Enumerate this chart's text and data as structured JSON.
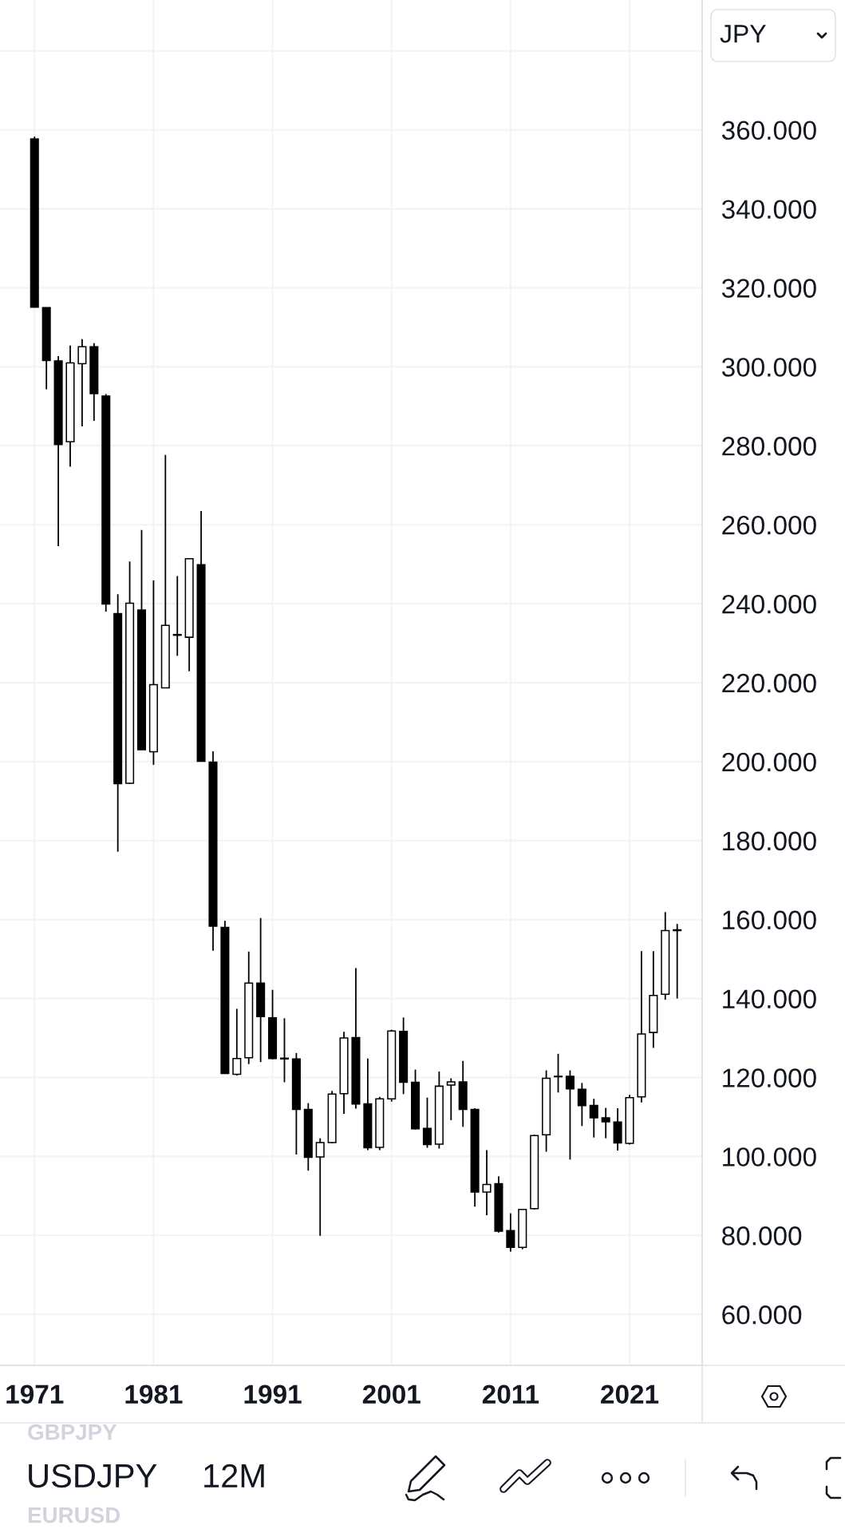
{
  "chart_data": {
    "type": "candlestick",
    "x": [
      1971,
      1972,
      1973,
      1974,
      1975,
      1976,
      1977,
      1978,
      1979,
      1980,
      1981,
      1982,
      1983,
      1984,
      1985,
      1986,
      1987,
      1988,
      1989,
      1990,
      1991,
      1992,
      1993,
      1994,
      1995,
      1996,
      1997,
      1998,
      1999,
      2000,
      2001,
      2002,
      2003,
      2004,
      2005,
      2006,
      2007,
      2008,
      2009,
      2010,
      2011,
      2012,
      2013,
      2014,
      2015,
      2016,
      2017,
      2018,
      2019,
      2020,
      2021,
      2022,
      2023,
      2024,
      2025
    ],
    "ohlc": [
      [
        357.7,
        358.3,
        315.1,
        315.1
      ],
      [
        315.0,
        315.0,
        294.3,
        301.6
      ],
      [
        301.5,
        302.7,
        254.6,
        280.3
      ],
      [
        281.0,
        305.4,
        274.7,
        301.0
      ],
      [
        300.8,
        307.0,
        284.9,
        305.1
      ],
      [
        305.1,
        306.0,
        286.3,
        293.2
      ],
      [
        292.6,
        293.1,
        238.0,
        239.9
      ],
      [
        237.5,
        242.4,
        177.2,
        194.4
      ],
      [
        194.5,
        250.7,
        194.3,
        240.1
      ],
      [
        238.4,
        258.7,
        203.0,
        203.0
      ],
      [
        202.5,
        245.9,
        199.2,
        219.5
      ],
      [
        218.7,
        277.7,
        218.7,
        234.5
      ],
      [
        232.2,
        247.0,
        226.8,
        232.0
      ],
      [
        231.5,
        251.4,
        222.9,
        251.4
      ],
      [
        249.9,
        263.5,
        200.1,
        200.1
      ],
      [
        199.9,
        202.6,
        152.1,
        158.3
      ],
      [
        158.0,
        159.7,
        121.0,
        121.0
      ],
      [
        120.8,
        137.4,
        120.5,
        124.8
      ],
      [
        125.0,
        151.9,
        123.4,
        143.9
      ],
      [
        143.9,
        160.4,
        123.9,
        135.4
      ],
      [
        135.1,
        142.2,
        124.6,
        124.8
      ],
      [
        124.9,
        135.0,
        118.8,
        124.7
      ],
      [
        124.7,
        126.2,
        100.5,
        111.9
      ],
      [
        111.9,
        113.5,
        96.4,
        99.8
      ],
      [
        99.9,
        104.6,
        79.9,
        103.5
      ],
      [
        103.5,
        116.6,
        103.3,
        115.8
      ],
      [
        115.9,
        131.6,
        110.8,
        130.0
      ],
      [
        130.1,
        147.7,
        112.1,
        113.3
      ],
      [
        113.3,
        124.8,
        101.6,
        102.2
      ],
      [
        102.3,
        115.1,
        101.6,
        114.6
      ],
      [
        114.6,
        132.1,
        113.9,
        131.8
      ],
      [
        131.7,
        135.2,
        115.8,
        118.8
      ],
      [
        118.8,
        122.0,
        106.8,
        107.0
      ],
      [
        107.1,
        114.9,
        102.2,
        103.0
      ],
      [
        103.1,
        121.5,
        102.0,
        117.8
      ],
      [
        118.1,
        119.8,
        109.2,
        118.9
      ],
      [
        118.9,
        124.2,
        107.5,
        111.9
      ],
      [
        111.9,
        112.2,
        87.3,
        91.0
      ],
      [
        91.0,
        101.6,
        85.1,
        92.9
      ],
      [
        93.1,
        95.0,
        80.7,
        81.1
      ],
      [
        81.2,
        85.6,
        75.9,
        77.0
      ],
      [
        77.0,
        86.7,
        76.5,
        86.6
      ],
      [
        86.8,
        105.5,
        86.6,
        105.3
      ],
      [
        105.5,
        121.8,
        101.2,
        119.8
      ],
      [
        120.2,
        126.0,
        116.2,
        120.3
      ],
      [
        120.3,
        121.8,
        99.2,
        117.1
      ],
      [
        117.0,
        118.6,
        107.7,
        112.9
      ],
      [
        112.9,
        114.6,
        104.8,
        109.8
      ],
      [
        109.8,
        112.3,
        104.6,
        108.8
      ],
      [
        108.7,
        112.2,
        101.5,
        103.4
      ],
      [
        103.3,
        115.6,
        103.0,
        114.9
      ],
      [
        115.1,
        152.0,
        113.7,
        131.0
      ],
      [
        131.4,
        152.0,
        127.5,
        140.8
      ],
      [
        141.1,
        161.9,
        139.7,
        157.2
      ],
      [
        157.2,
        158.9,
        140.0,
        157.4
      ]
    ],
    "color": "#000000",
    "xlim": [
      1968.1,
      2027.1
    ],
    "ylim": [
      47.1,
      392.9
    ],
    "xticks": [
      1971,
      1981,
      1991,
      2001,
      2011,
      2021
    ],
    "yticks": [
      {
        "value": 60,
        "label": "60.000"
      },
      {
        "value": 80,
        "label": "80.000"
      },
      {
        "value": 100,
        "label": "100.000"
      },
      {
        "value": 120,
        "label": "120.000"
      },
      {
        "value": 140,
        "label": "140.000"
      },
      {
        "value": 160,
        "label": "160.000"
      },
      {
        "value": 180,
        "label": "180.000"
      },
      {
        "value": 200,
        "label": "200.000"
      },
      {
        "value": 220,
        "label": "220.000"
      },
      {
        "value": 240,
        "label": "240.000"
      },
      {
        "value": 260,
        "label": "260.000"
      },
      {
        "value": 280,
        "label": "280.000"
      },
      {
        "value": 300,
        "label": "300.000"
      },
      {
        "value": 320,
        "label": "320.000"
      },
      {
        "value": 340,
        "label": "340.000"
      },
      {
        "value": 360,
        "label": "360.000"
      },
      {
        "value": 380,
        "label": null
      }
    ],
    "grid": true,
    "annotations": [
      "JPY",
      "GBPJPY",
      "USDJPY",
      "12M",
      "EURUSD"
    ]
  }
}
